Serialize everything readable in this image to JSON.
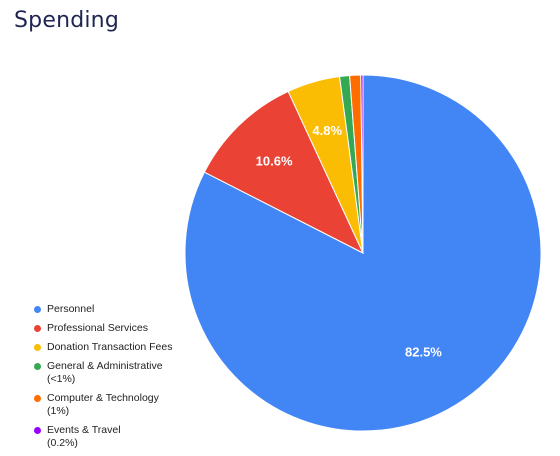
{
  "chart_data": {
    "type": "pie",
    "title": "Spending",
    "slices": [
      {
        "label": "Personnel",
        "value": 82.5,
        "data_label": "82.5%",
        "color": "#4285f4"
      },
      {
        "label": "Professional Services",
        "value": 10.6,
        "data_label": "10.6%",
        "color": "#ea4335"
      },
      {
        "label": "Donation Transaction Fees",
        "value": 4.8,
        "data_label": "4.8%",
        "color": "#fbbc04"
      },
      {
        "label": "General & Administrative\n(<1%)",
        "value": 0.9,
        "data_label": "",
        "color": "#34a853"
      },
      {
        "label": "Computer & Technology\n(1%)",
        "value": 1.0,
        "data_label": "",
        "color": "#ff6d01"
      },
      {
        "label": "Events & Travel\n(0.2%)",
        "value": 0.2,
        "data_label": "",
        "color": "#9900ff"
      }
    ],
    "legend_position": "bottom-left"
  }
}
